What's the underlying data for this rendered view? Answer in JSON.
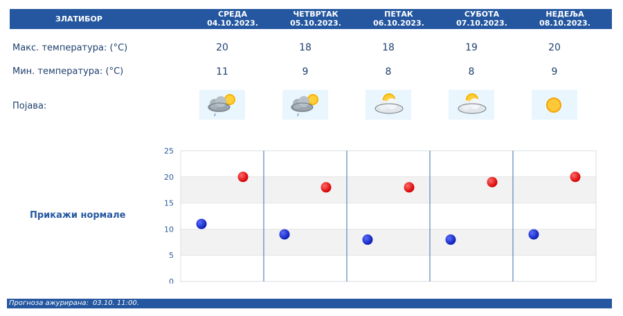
{
  "location": "ЗЛАТИБОР",
  "days": [
    {
      "name": "СРЕДА",
      "date": "04.10.2023.",
      "max": "20",
      "min": "11",
      "icon": "cloud-rain-sun-icon"
    },
    {
      "name": "ЧЕТВРТАК",
      "date": "05.10.2023.",
      "max": "18",
      "min": "9",
      "icon": "cloud-rain-sun-icon"
    },
    {
      "name": "ПЕТАК",
      "date": "06.10.2023.",
      "max": "18",
      "min": "8",
      "icon": "partly-cloudy-icon"
    },
    {
      "name": "СУБОТА",
      "date": "07.10.2023.",
      "max": "19",
      "min": "8",
      "icon": "partly-cloudy-icon"
    },
    {
      "name": "НЕДЕЉА",
      "date": "08.10.2023.",
      "max": "20",
      "min": "9",
      "icon": "sun-icon"
    }
  ],
  "labels": {
    "max_temp": "Макс. температура: (°C)",
    "min_temp": "Мин. температура: (°C)",
    "phenomenon": "Појава:"
  },
  "show_normals": "Прикажи нормале",
  "footer": {
    "label": "Прогноза ажурирана:",
    "value": "03.10. 11:00."
  },
  "colors": {
    "header_bg": "#2457a0",
    "max_marker": "#d40000",
    "min_marker": "#0a1fb5",
    "band": "#f2f2f2"
  },
  "chart_data": {
    "type": "scatter",
    "x": [
      "04.10.2023.",
      "05.10.2023.",
      "06.10.2023.",
      "07.10.2023.",
      "08.10.2023."
    ],
    "series": [
      {
        "values": [
          20,
          18,
          18,
          19,
          20
        ]
      },
      {
        "values": [
          11,
          9,
          8,
          8,
          9
        ]
      }
    ],
    "y_ticks": [
      "0",
      "5",
      "10",
      "15",
      "20",
      "25"
    ],
    "ylim": [
      0,
      25
    ],
    "grid": "alternating bands"
  }
}
